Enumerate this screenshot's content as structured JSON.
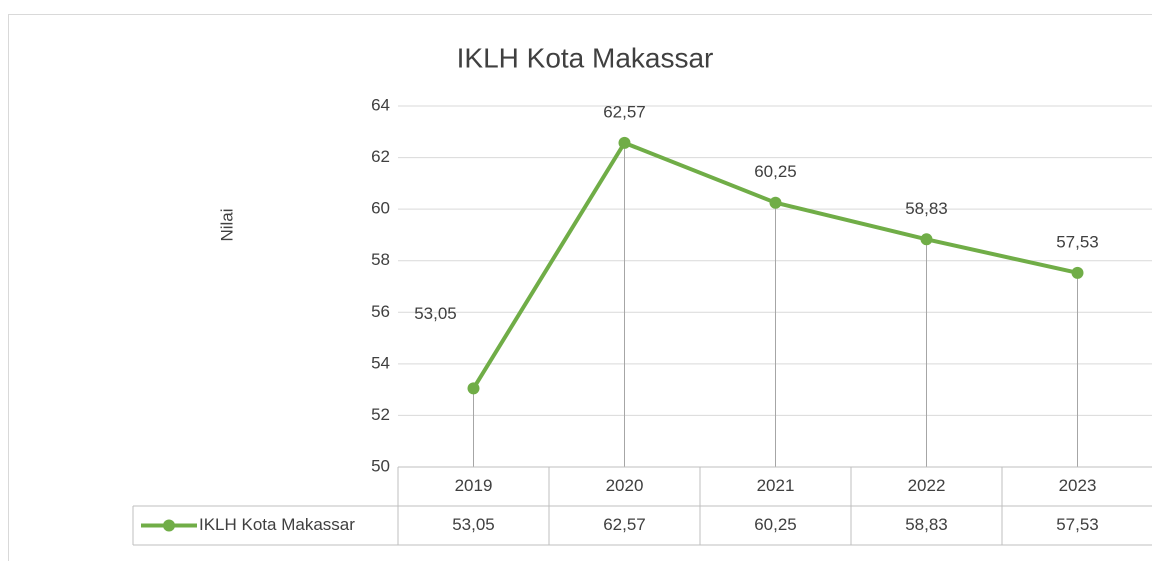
{
  "chart_data": {
    "type": "line",
    "title": "IKLH Kota Makassar",
    "y_label": "Nilai",
    "categories": [
      "2019",
      "2020",
      "2021",
      "2022",
      "2023"
    ],
    "series": [
      {
        "name": "IKLH Kota Makassar",
        "color": "#70ad47",
        "values": [
          53.05,
          62.57,
          60.25,
          58.83,
          57.53
        ],
        "value_labels": [
          "53,05",
          "62,57",
          "60,25",
          "58,83",
          "57,53"
        ]
      }
    ],
    "ylim": [
      50,
      64
    ],
    "yticks": [
      50,
      52,
      54,
      56,
      58,
      60,
      62,
      64
    ],
    "grid": true,
    "drop_lines": true,
    "data_table": true
  }
}
